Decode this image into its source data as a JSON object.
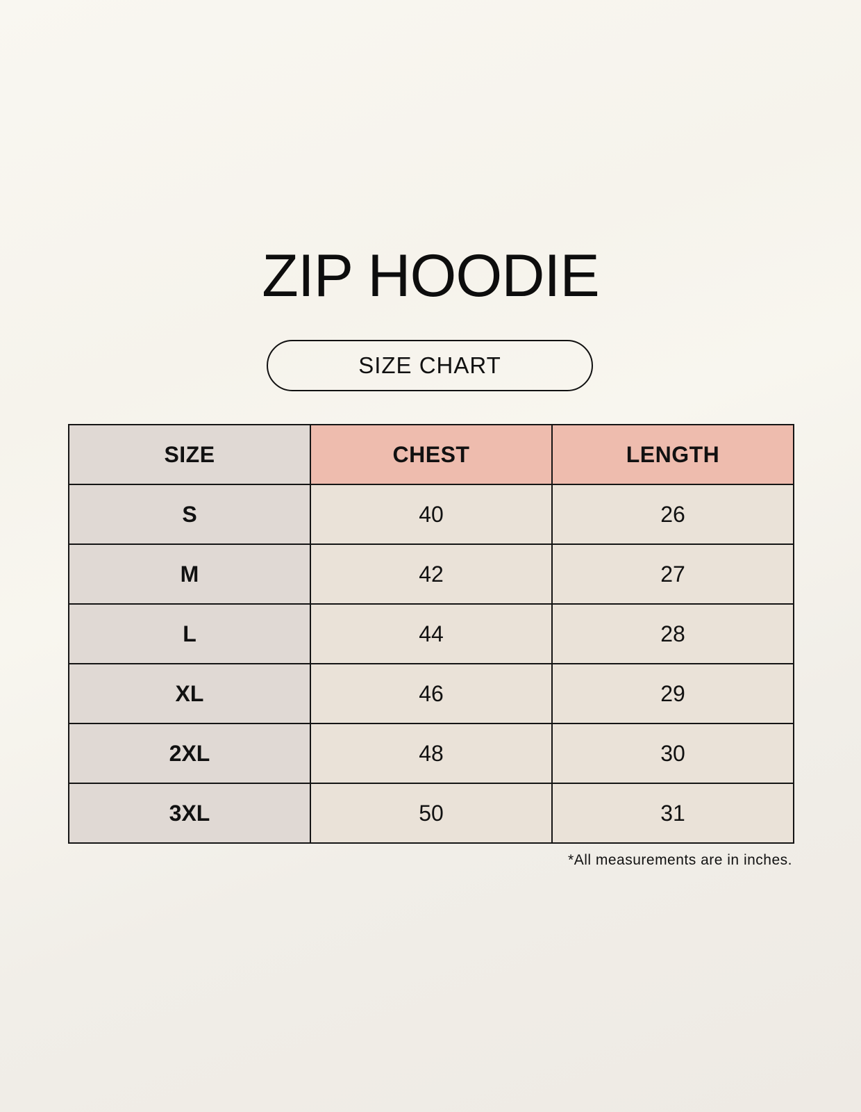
{
  "title": "ZIP HOODIE",
  "subtitle": "SIZE CHART",
  "colors": {
    "header_highlight": "#eebcae",
    "size_column": "#e0d9d4",
    "value_cells": "#eae2d8"
  },
  "table": {
    "headers": [
      "SIZE",
      "CHEST",
      "LENGTH"
    ],
    "rows": [
      {
        "size": "S",
        "chest": "40",
        "length": "26"
      },
      {
        "size": "M",
        "chest": "42",
        "length": "27"
      },
      {
        "size": "L",
        "chest": "44",
        "length": "28"
      },
      {
        "size": "XL",
        "chest": "46",
        "length": "29"
      },
      {
        "size": "2XL",
        "chest": "48",
        "length": "30"
      },
      {
        "size": "3XL",
        "chest": "50",
        "length": "31"
      }
    ]
  },
  "footnote": "*All measurements are in inches."
}
